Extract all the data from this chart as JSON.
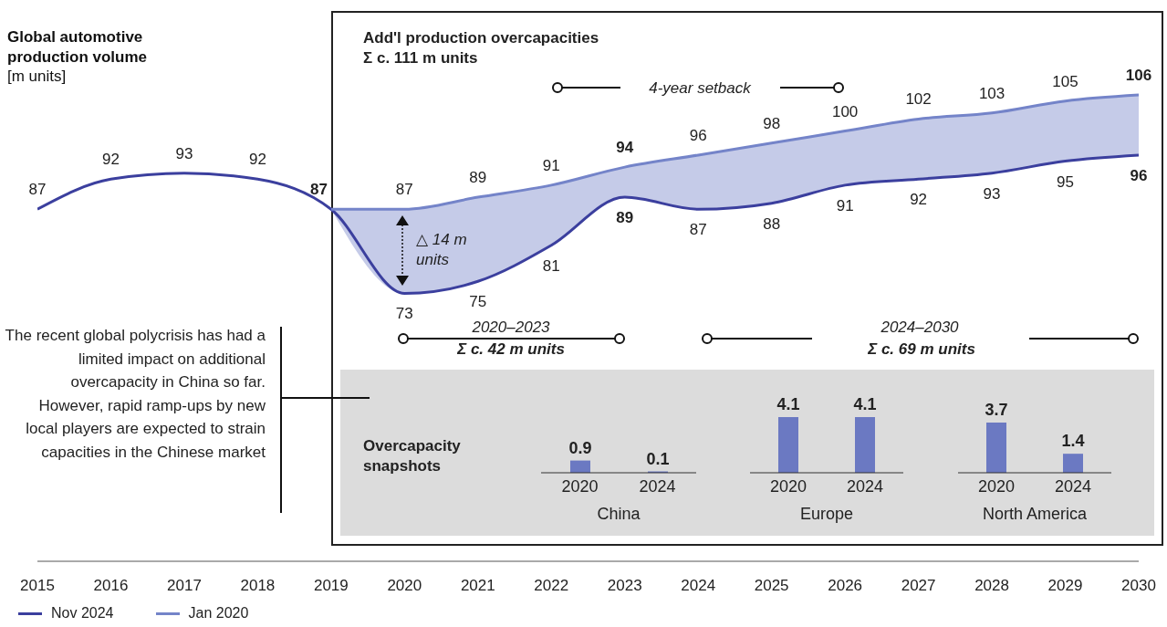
{
  "chart_data": [
    {
      "type": "line",
      "title": "Global automotive production volume",
      "subtitle": "[m units]",
      "categories": [
        "2015",
        "2016",
        "2017",
        "2018",
        "2019",
        "2020",
        "2021",
        "2022",
        "2023",
        "2024",
        "2025",
        "2026",
        "2027",
        "2028",
        "2029",
        "2030"
      ],
      "series": [
        {
          "name": "Nov 2024",
          "color": "#3b3f9e",
          "values": [
            87,
            92,
            93,
            92,
            87,
            73,
            75,
            81,
            89,
            87,
            88,
            91,
            92,
            93,
            95,
            96
          ],
          "value_labels": [
            "87",
            "92",
            "93",
            "92",
            "87",
            "73",
            "75",
            "81",
            "89",
            "87",
            "88",
            "91",
            "92",
            "93",
            "95",
            "96"
          ]
        },
        {
          "name": "Jan 2020",
          "color": "#7484c9",
          "values": [
            null,
            null,
            null,
            null,
            87,
            87,
            89,
            91,
            94,
            96,
            98,
            100,
            102,
            103,
            105,
            106
          ],
          "value_labels": [
            null,
            null,
            null,
            null,
            null,
            "87",
            "89",
            "91",
            "94",
            "96",
            "98",
            "100",
            "102",
            "103",
            "105",
            "106"
          ],
          "lower": [
            null,
            null,
            null,
            null,
            87,
            73,
            75,
            81,
            89,
            87,
            88,
            91,
            92,
            93,
            95,
            96
          ],
          "upper": [
            null,
            null,
            null,
            null,
            87,
            87,
            89,
            91,
            94,
            96,
            98,
            100,
            102,
            103,
            105,
            106
          ]
        }
      ],
      "legend": "bottom",
      "annotations": [
        "Add'l production overcapacities",
        "Σ c. 111 m units",
        "4-year setback",
        "△ 14 m units",
        "2020–2023",
        "Σ c. 42 m units",
        "2024–2030",
        "Σ c. 69 m units",
        "The recent global polycrisis has had a limited impact on additional overcapacity in China so far. However, rapid ramp-ups by new local players are expected to strain capacities in the Chinese market",
        "Overcapacity snapshots"
      ]
    },
    {
      "type": "bar",
      "categories": [
        "2020",
        "2024"
      ],
      "values": [
        0.9,
        0.1
      ],
      "color": "#6b79c2",
      "xlabel": "China",
      "data_labels": true
    },
    {
      "type": "bar",
      "categories": [
        "2020",
        "2024"
      ],
      "values": [
        4.1,
        4.1
      ],
      "color": "#6b79c2",
      "xlabel": "Europe",
      "data_labels": true
    },
    {
      "type": "bar",
      "categories": [
        "2020",
        "2024"
      ],
      "values": [
        3.7,
        1.4
      ],
      "color": "#6b79c2",
      "xlabel": "North America",
      "data_labels": true
    }
  ]
}
